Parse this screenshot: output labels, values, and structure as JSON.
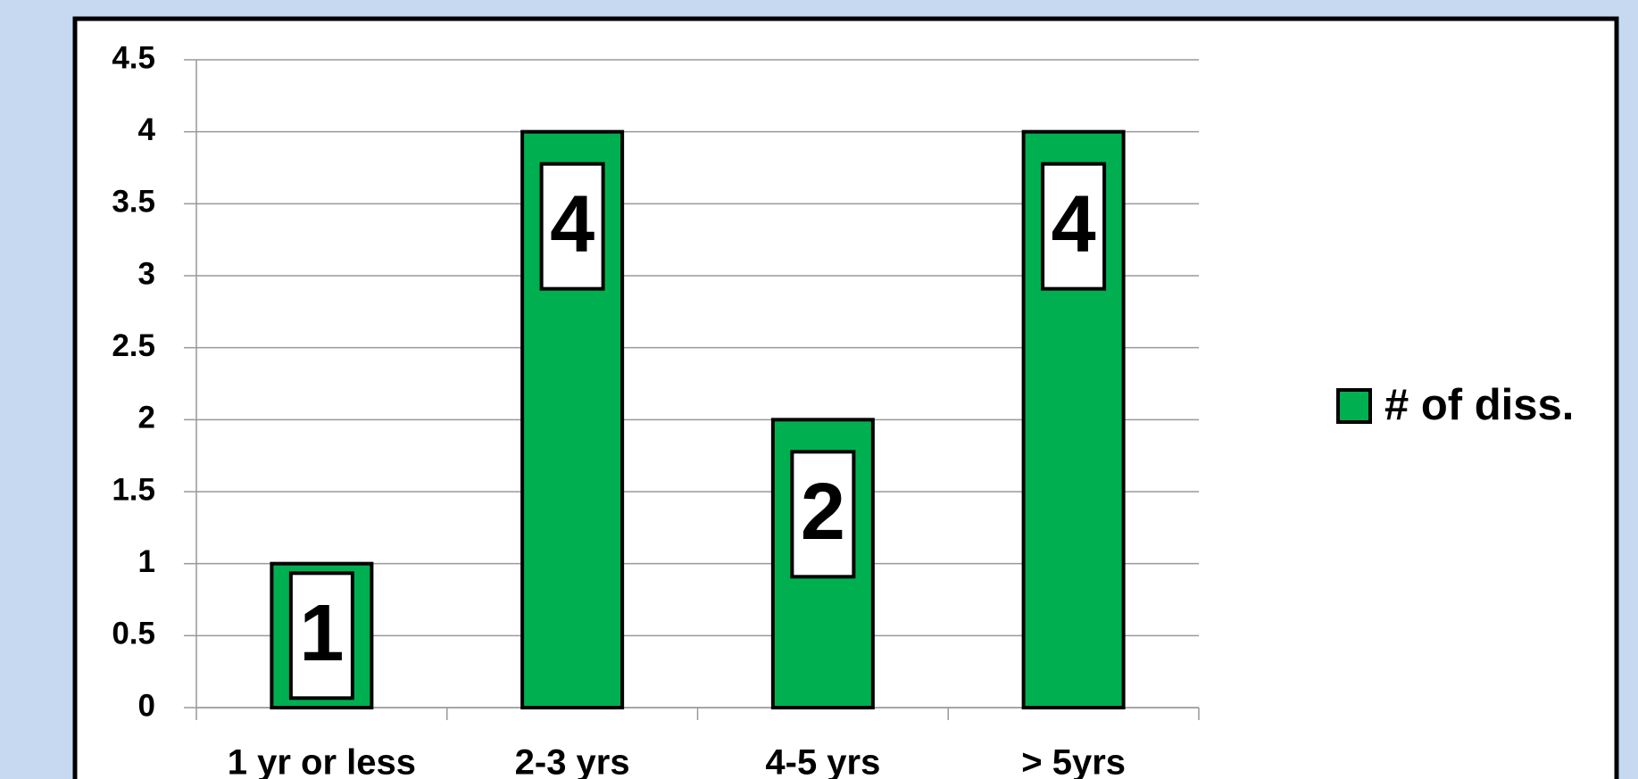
{
  "chart_data": {
    "type": "bar",
    "categories": [
      "1 yr or less",
      "2-3 yrs",
      "4-5 yrs",
      "> 5yrs"
    ],
    "series": [
      {
        "name": "# of diss.",
        "color": "#00b050",
        "values": [
          1,
          4,
          2,
          4
        ]
      }
    ],
    "ylim": [
      0,
      4.5
    ],
    "yticks": [
      0,
      0.5,
      1,
      1.5,
      2,
      2.5,
      3,
      3.5,
      4,
      4.5
    ],
    "grid": true,
    "legend": "right"
  }
}
